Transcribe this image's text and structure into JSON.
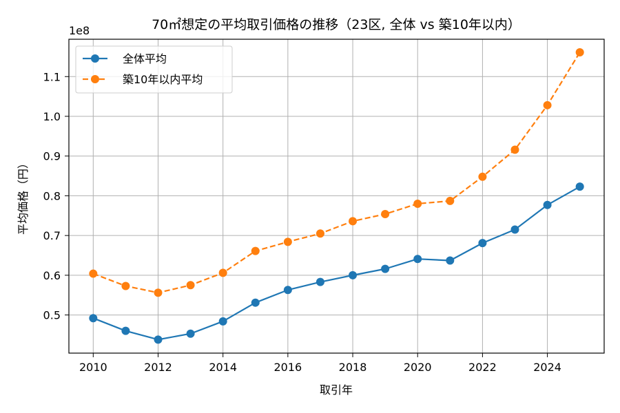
{
  "chart_data": {
    "type": "line",
    "title": "70㎡想定の平均取引価格の推移（23区, 全体 vs 築10年以内）",
    "xlabel": "取引年",
    "ylabel": "平均価格（円）",
    "y_offset_label": "1e8",
    "x": [
      2010,
      2011,
      2012,
      2013,
      2014,
      2015,
      2016,
      2017,
      2018,
      2019,
      2020,
      2021,
      2022,
      2023,
      2024,
      2025
    ],
    "x_ticks": [
      2010,
      2012,
      2014,
      2016,
      2018,
      2020,
      2022,
      2024
    ],
    "x_tick_labels": [
      "2010",
      "2012",
      "2014",
      "2016",
      "2018",
      "2020",
      "2022",
      "2024"
    ],
    "y_ticks": [
      0.5,
      0.6,
      0.7,
      0.8,
      0.9,
      1.0,
      1.1
    ],
    "y_tick_labels": [
      "0.5",
      "0.6",
      "0.7",
      "0.8",
      "0.9",
      "1.0",
      "1.1"
    ],
    "xlim": [
      2009.25,
      2025.75
    ],
    "ylim": [
      0.404,
      1.194
    ],
    "grid": true,
    "legend_position": "upper-left",
    "series": [
      {
        "name": "全体平均",
        "color": "#1f77b4",
        "line_style": "solid",
        "marker": "circle",
        "values": [
          0.492,
          0.46,
          0.438,
          0.453,
          0.484,
          0.531,
          0.563,
          0.583,
          0.6,
          0.616,
          0.641,
          0.637,
          0.681,
          0.715,
          0.777,
          0.823
        ]
      },
      {
        "name": "築10年以内平均",
        "color": "#ff7f0e",
        "line_style": "dashed",
        "marker": "circle",
        "values": [
          0.604,
          0.573,
          0.556,
          0.575,
          0.606,
          0.661,
          0.684,
          0.705,
          0.736,
          0.754,
          0.78,
          0.787,
          0.848,
          0.916,
          1.028,
          1.161
        ]
      }
    ]
  }
}
